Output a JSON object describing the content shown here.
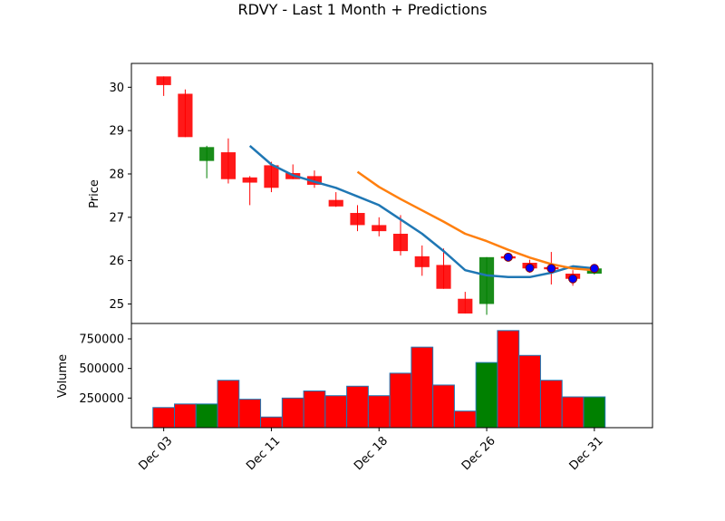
{
  "chart_data": {
    "type": "candlestick",
    "title": "RDVY - Last 1 Month + Predictions",
    "price_panel": {
      "ylabel": "Price",
      "ylim": [
        24.55,
        30.55
      ],
      "yticks": [
        "25",
        "26",
        "27",
        "28",
        "29",
        "30"
      ]
    },
    "volume_panel": {
      "ylabel": "Volume",
      "ylim": [
        0,
        880000
      ],
      "yticks": [
        "250000",
        "500000",
        "750000"
      ]
    },
    "x_axis": {
      "xlim": [
        -1.5,
        22.7
      ],
      "tick_labels": [
        {
          "index": 0,
          "label": "Dec 03"
        },
        {
          "index": 5,
          "label": "Dec 11"
        },
        {
          "index": 10,
          "label": "Dec 18"
        },
        {
          "index": 15,
          "label": "Dec 26"
        },
        {
          "index": 20,
          "label": "Dec 31"
        }
      ]
    },
    "candles": [
      {
        "open": 30.25,
        "high": 30.25,
        "low": 29.8,
        "close": 30.05,
        "volume": 170000
      },
      {
        "open": 29.85,
        "high": 29.95,
        "low": 28.85,
        "close": 28.85,
        "volume": 200000
      },
      {
        "open": 28.3,
        "high": 28.65,
        "low": 27.9,
        "close": 28.62,
        "volume": 200000
      },
      {
        "open": 28.5,
        "high": 28.82,
        "low": 27.78,
        "close": 27.88,
        "volume": 400000
      },
      {
        "open": 27.92,
        "high": 27.95,
        "low": 27.28,
        "close": 27.8,
        "volume": 240000
      },
      {
        "open": 28.2,
        "high": 28.28,
        "low": 27.58,
        "close": 27.68,
        "volume": 90000
      },
      {
        "open": 28.02,
        "high": 28.22,
        "low": 27.88,
        "close": 27.88,
        "volume": 250000
      },
      {
        "open": 27.95,
        "high": 28.08,
        "low": 27.68,
        "close": 27.75,
        "volume": 310000
      },
      {
        "open": 27.4,
        "high": 27.58,
        "low": 27.24,
        "close": 27.25,
        "volume": 270000
      },
      {
        "open": 27.1,
        "high": 27.28,
        "low": 26.68,
        "close": 26.82,
        "volume": 350000
      },
      {
        "open": 26.82,
        "high": 27.0,
        "low": 26.56,
        "close": 26.68,
        "volume": 270000
      },
      {
        "open": 26.62,
        "high": 27.05,
        "low": 26.12,
        "close": 26.22,
        "volume": 460000
      },
      {
        "open": 26.1,
        "high": 26.35,
        "low": 25.65,
        "close": 25.85,
        "volume": 680000
      },
      {
        "open": 25.9,
        "high": 26.28,
        "low": 25.35,
        "close": 25.35,
        "volume": 360000
      },
      {
        "open": 25.12,
        "high": 25.28,
        "low": 24.78,
        "close": 24.78,
        "volume": 140000
      },
      {
        "open": 25.0,
        "high": 26.08,
        "low": 24.75,
        "close": 26.08,
        "volume": 550000
      },
      {
        "open": 26.1,
        "high": 26.15,
        "low": 26.02,
        "close": 26.05,
        "volume": 820000
      },
      {
        "open": 25.95,
        "high": 26.02,
        "low": 25.72,
        "close": 25.82,
        "volume": 610000
      },
      {
        "open": 25.85,
        "high": 26.2,
        "low": 25.45,
        "close": 25.8,
        "volume": 400000
      },
      {
        "open": 25.7,
        "high": 25.78,
        "low": 25.42,
        "close": 25.58,
        "volume": 260000
      },
      {
        "open": 25.7,
        "high": 25.85,
        "low": 25.68,
        "close": 25.82,
        "volume": 260000
      }
    ],
    "series": [
      {
        "kind": "line",
        "color": "#1f77b4",
        "points": [
          [
            4,
            28.65
          ],
          [
            5,
            28.22
          ],
          [
            6,
            27.97
          ],
          [
            7,
            27.82
          ],
          [
            8,
            27.68
          ],
          [
            9,
            27.48
          ],
          [
            10,
            27.28
          ],
          [
            11,
            26.95
          ],
          [
            12,
            26.62
          ],
          [
            13,
            26.22
          ],
          [
            14,
            25.78
          ],
          [
            15,
            25.66
          ],
          [
            16,
            25.62
          ],
          [
            17,
            25.62
          ],
          [
            18,
            25.72
          ],
          [
            19,
            25.87
          ],
          [
            20,
            25.82
          ]
        ]
      },
      {
        "kind": "line",
        "color": "#ff7f0e",
        "points": [
          [
            9,
            28.05
          ],
          [
            10,
            27.7
          ],
          [
            11,
            27.42
          ],
          [
            12,
            27.16
          ],
          [
            13,
            26.9
          ],
          [
            14,
            26.62
          ],
          [
            15,
            26.45
          ],
          [
            16,
            26.25
          ],
          [
            17,
            26.07
          ],
          [
            18,
            25.92
          ],
          [
            19,
            25.82
          ],
          [
            20,
            25.78
          ]
        ]
      },
      {
        "kind": "scatter",
        "color": "#0000ff",
        "points": [
          [
            16,
            26.08
          ],
          [
            17,
            25.83
          ],
          [
            18,
            25.82
          ],
          [
            19,
            25.58
          ],
          [
            20,
            25.82
          ]
        ]
      }
    ],
    "colors": {
      "up": "#008000",
      "down": "#ff0000",
      "volume_edge": "#1f77b4",
      "marker_edge": "#8b0000"
    }
  }
}
